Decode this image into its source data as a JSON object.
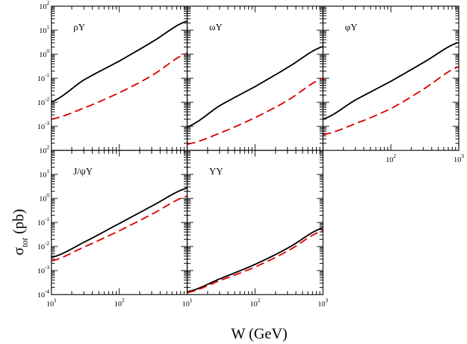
{
  "chart_data": {
    "type": "line",
    "xlabel": "W (GeV)",
    "ylabel_main": "σ",
    "ylabel_sub": "tot",
    "ylabel_unit": " (pb)",
    "x_scale": "log",
    "y_scale": "log",
    "xlim": [
      10,
      1000
    ],
    "ylim": [
      0.0001,
      100
    ],
    "x_tick_labels": [
      {
        "base": "10",
        "exp": "1",
        "value": 10
      },
      {
        "base": "10",
        "exp": "2",
        "value": 100
      },
      {
        "base": "10",
        "exp": "3",
        "value": 1000
      }
    ],
    "y_tick_labels": [
      {
        "base": "10",
        "exp": "-4",
        "value": 0.0001
      },
      {
        "base": "10",
        "exp": "-3",
        "value": 0.001
      },
      {
        "base": "10",
        "exp": "-2",
        "value": 0.01
      },
      {
        "base": "10",
        "exp": "-1",
        "value": 0.1
      },
      {
        "base": "10",
        "exp": "0",
        "value": 1
      },
      {
        "base": "10",
        "exp": "1",
        "value": 10
      },
      {
        "base": "10",
        "exp": "2",
        "value": 100
      }
    ],
    "panels": [
      {
        "label": "ρY",
        "series": [
          {
            "style": "solid",
            "color": "#000000",
            "x": [
              10,
              30,
              100,
              300,
              1000
            ],
            "y": [
              0.0105,
              0.085,
              0.52,
              3.2,
              24
            ]
          },
          {
            "style": "dashed",
            "color": "#e00000",
            "x": [
              10,
              30,
              100,
              300,
              1000
            ],
            "y": [
              0.002,
              0.0058,
              0.025,
              0.13,
              1.1
            ]
          }
        ]
      },
      {
        "label": "ωY",
        "series": [
          {
            "style": "solid",
            "color": "#000000",
            "x": [
              10,
              30,
              100,
              300,
              1000
            ],
            "y": [
              0.00095,
              0.0072,
              0.045,
              0.28,
              2.1
            ]
          },
          {
            "style": "dashed",
            "color": "#e00000",
            "x": [
              10,
              30,
              100,
              300,
              1000
            ],
            "y": [
              0.00018,
              0.00052,
              0.0023,
              0.012,
              0.1
            ]
          }
        ]
      },
      {
        "label": "φY",
        "series": [
          {
            "style": "solid",
            "color": "#000000",
            "x": [
              10,
              30,
              100,
              300,
              1000
            ],
            "y": [
              0.002,
              0.0125,
              0.075,
              0.45,
              3.1
            ]
          },
          {
            "style": "dashed",
            "color": "#e00000",
            "x": [
              10,
              30,
              100,
              300,
              1000
            ],
            "y": [
              0.00045,
              0.0013,
              0.0055,
              0.035,
              0.3
            ]
          }
        ]
      },
      {
        "label": "J/ψY",
        "series": [
          {
            "style": "solid",
            "color": "#000000",
            "x": [
              10,
              30,
              100,
              300,
              1000
            ],
            "y": [
              0.0035,
              0.015,
              0.09,
              0.48,
              2.7
            ]
          },
          {
            "style": "dashed",
            "color": "#e00000",
            "x": [
              10,
              30,
              100,
              300,
              1000
            ],
            "y": [
              0.0025,
              0.0095,
              0.045,
              0.22,
              1.25
            ]
          }
        ]
      },
      {
        "label": "YY",
        "series": [
          {
            "style": "solid",
            "color": "#000000",
            "x": [
              10,
              30,
              100,
              300,
              1000
            ],
            "y": [
              0.00013,
              0.00045,
              0.0018,
              0.0085,
              0.06
            ]
          },
          {
            "style": "dashed",
            "color": "#e00000",
            "x": [
              10,
              30,
              100,
              300,
              1000
            ],
            "y": [
              0.00012,
              0.00038,
              0.0014,
              0.0065,
              0.046
            ]
          }
        ]
      }
    ]
  }
}
